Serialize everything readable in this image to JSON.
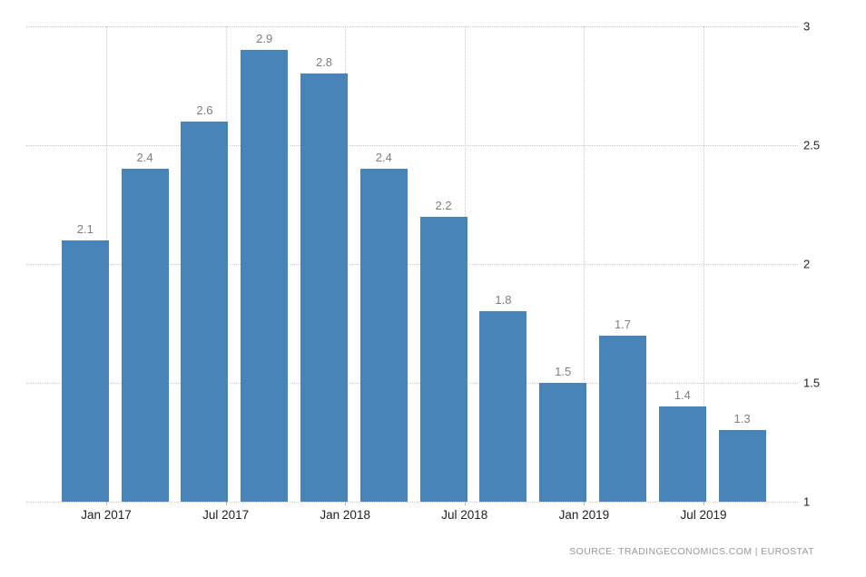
{
  "chart_data": {
    "type": "bar",
    "title": "",
    "xlabel": "",
    "ylabel": "",
    "values": [
      2.1,
      2.4,
      2.6,
      2.9,
      2.8,
      2.4,
      2.2,
      1.8,
      1.5,
      1.7,
      1.4,
      1.3
    ],
    "bar_value_labels": [
      "2.1",
      "2.4",
      "2.6",
      "2.9",
      "2.8",
      "2.4",
      "2.2",
      "1.8",
      "1.5",
      "1.7",
      "1.4",
      "1.3"
    ],
    "x_tick_labels": [
      "Jan 2017",
      "Jul 2017",
      "Jan 2018",
      "Jul 2018",
      "Jan 2019",
      "Jul 2019"
    ],
    "y_tick_values": [
      3,
      2.5,
      2,
      1.5,
      1
    ],
    "y_tick_labels": [
      "3",
      "2.5",
      "2",
      "1.5",
      "1"
    ],
    "ylim": [
      1,
      3
    ],
    "grid": "dotted",
    "legend": "none"
  },
  "colors": {
    "bar": "#4785b8",
    "grid": "#cccccc",
    "bar_value_label": "#7e7e7e",
    "axis_label": "#222222",
    "tick_mark": "#bbbbbb",
    "source": "#999999"
  },
  "source": {
    "text": "SOURCE:  TRADINGECONOMICS.COM   |   EUROSTAT"
  }
}
